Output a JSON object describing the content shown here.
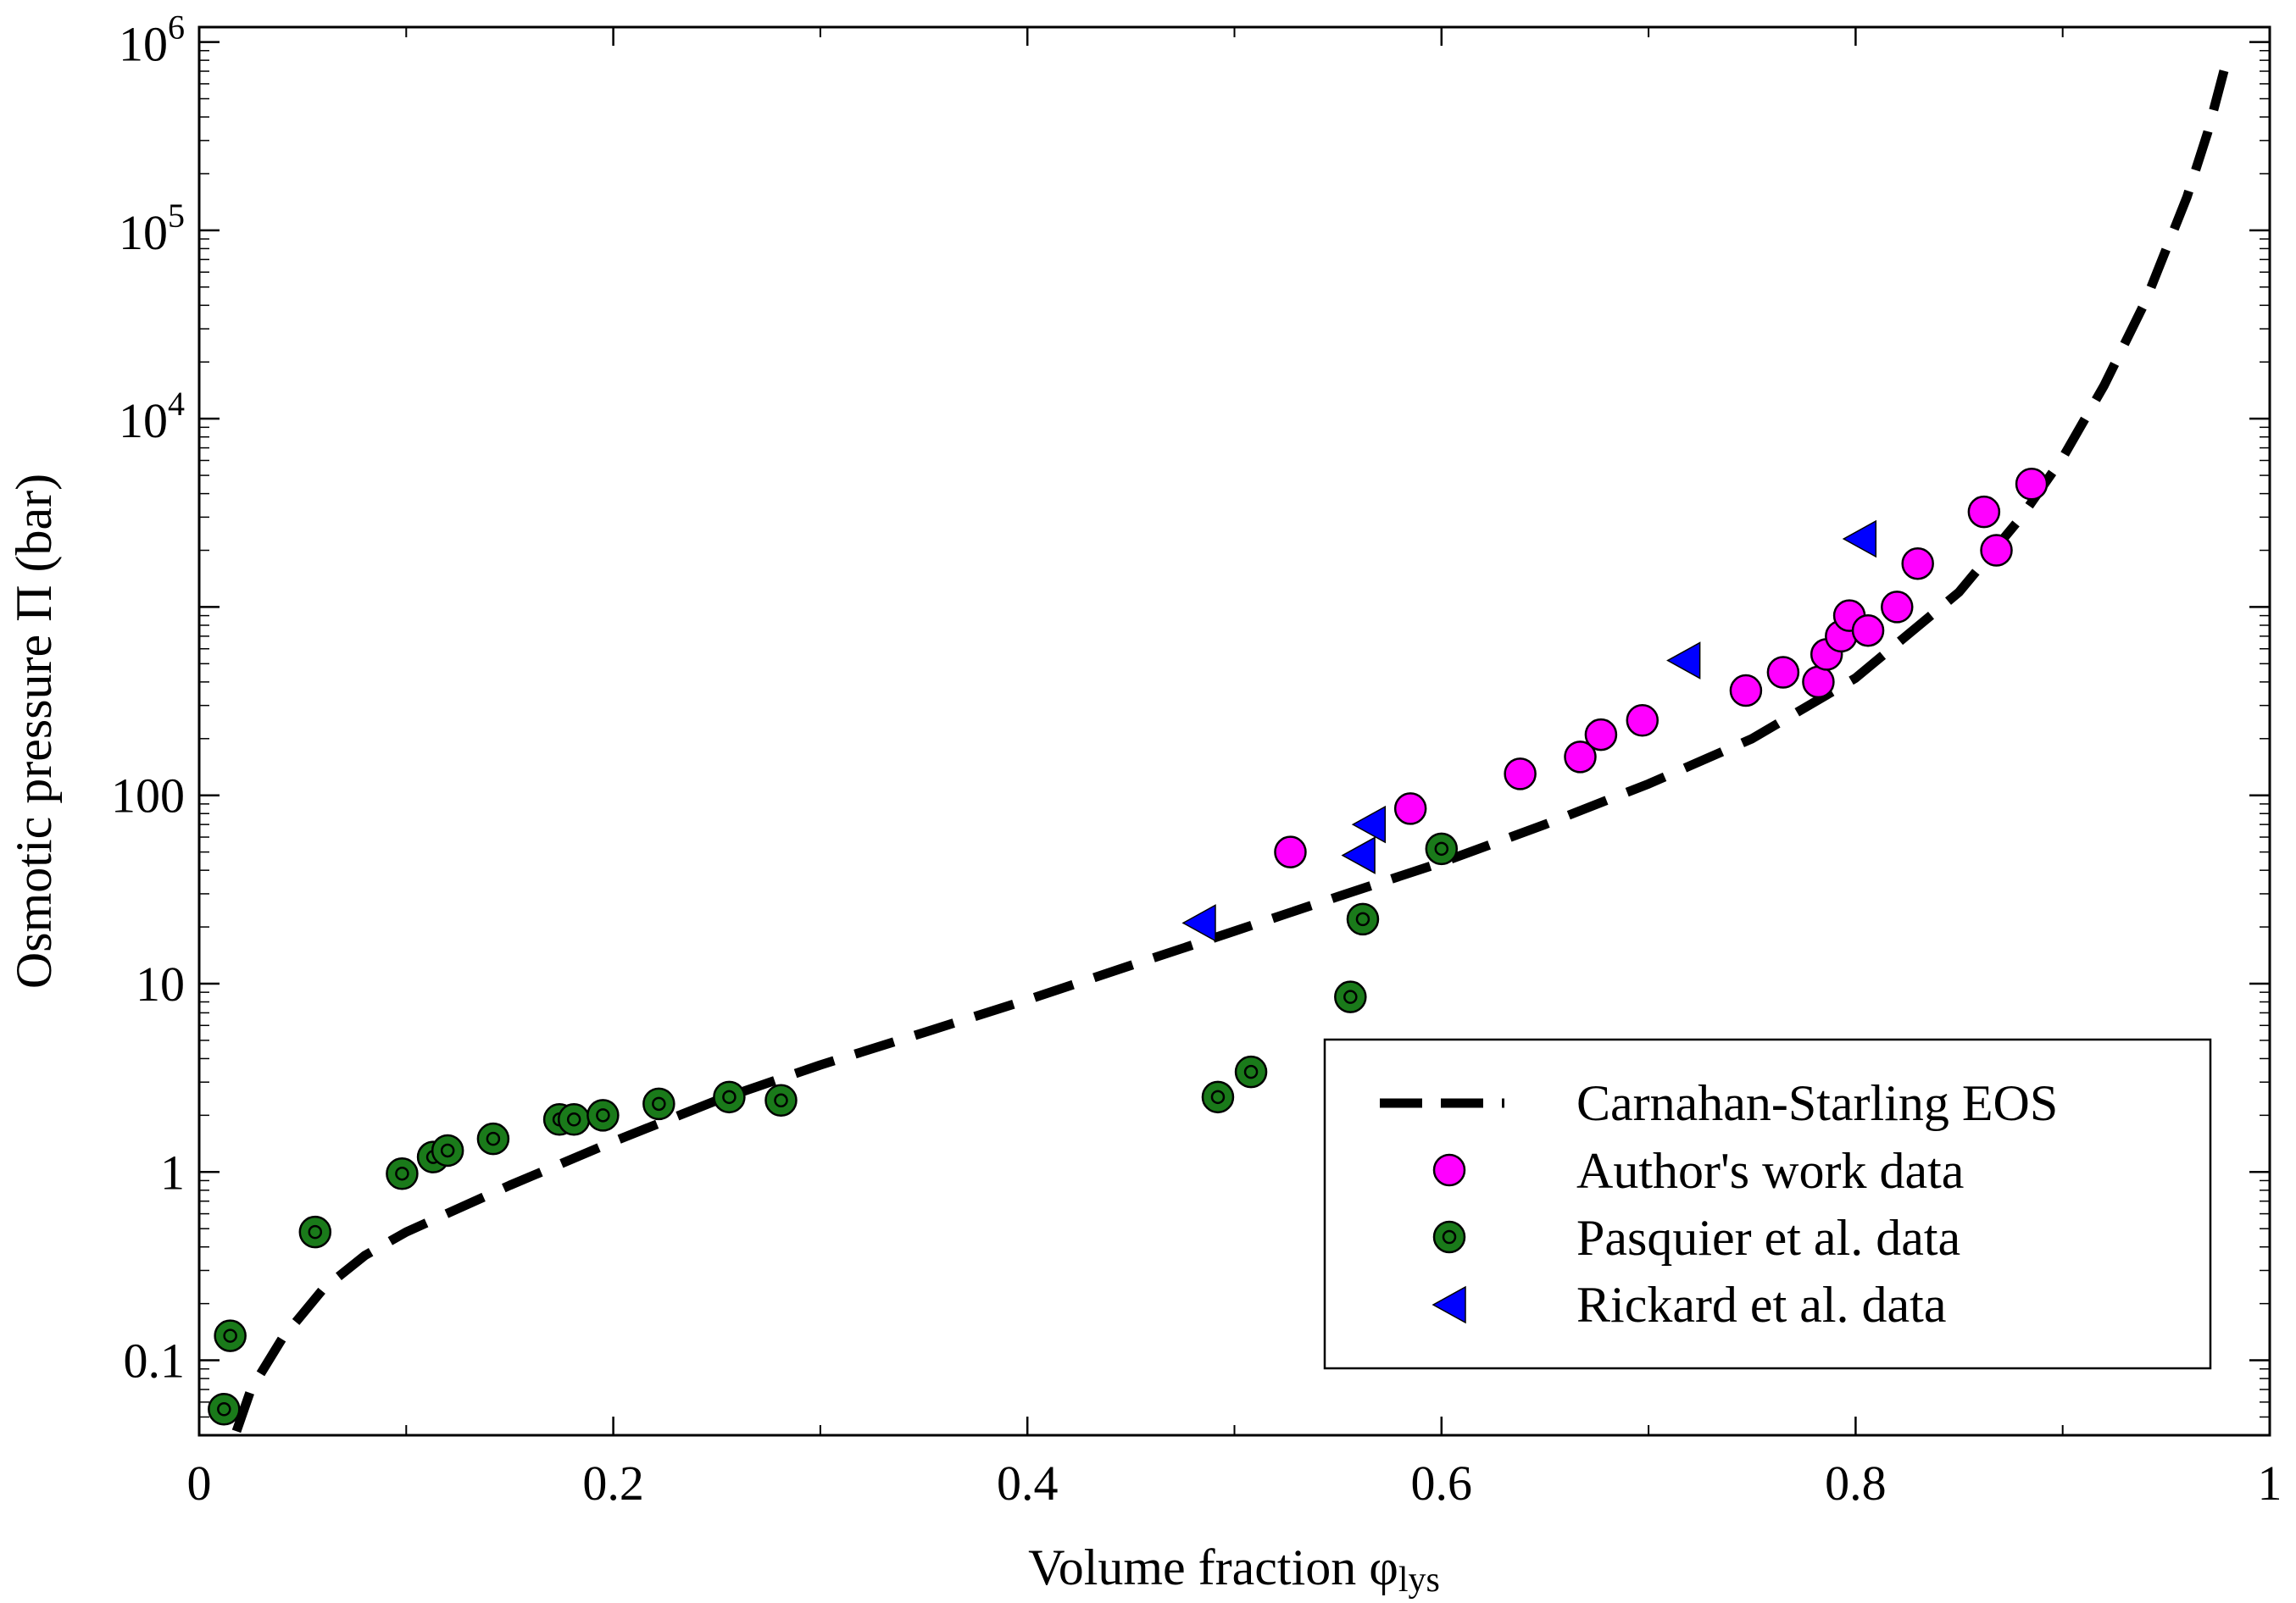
{
  "chart_data": {
    "type": "scatter",
    "title": "",
    "xlabel": "Volume fraction φ",
    "xlabel_subscript": "lys",
    "ylabel": "Osmotic pressure Π (bar)",
    "xscale": "linear",
    "yscale": "log",
    "xlim": [
      0,
      1
    ],
    "ylim": [
      0.04,
      1200000
    ],
    "x_ticks": [
      {
        "value": 0,
        "label": "0"
      },
      {
        "value": 0.2,
        "label": "0.2"
      },
      {
        "value": 0.4,
        "label": "0.4"
      },
      {
        "value": 0.6,
        "label": "0.6"
      },
      {
        "value": 0.8,
        "label": "0.8"
      },
      {
        "value": 1,
        "label": "1"
      }
    ],
    "y_ticks": [
      {
        "value": 0.1,
        "label": "0.1"
      },
      {
        "value": 1,
        "label": "1"
      },
      {
        "value": 10,
        "label": "10"
      },
      {
        "value": 100,
        "label": "100"
      },
      {
        "value": 1000,
        "label": ""
      },
      {
        "value": 10000,
        "label_base": "10",
        "label_exp": "4"
      },
      {
        "value": 100000,
        "label_base": "10",
        "label_exp": "5"
      },
      {
        "value": 1000000,
        "label_base": "10",
        "label_exp": "6"
      }
    ],
    "legend_position": "bottom-right",
    "series": [
      {
        "name": "Carnahan-Starling EOS",
        "kind": "line",
        "color": "#000000",
        "x": [
          0.018,
          0.025,
          0.04,
          0.06,
          0.08,
          0.1,
          0.15,
          0.2,
          0.25,
          0.3,
          0.35,
          0.4,
          0.45,
          0.5,
          0.55,
          0.6,
          0.65,
          0.7,
          0.75,
          0.8,
          0.85,
          0.88,
          0.9,
          0.92,
          0.94,
          0.96,
          0.97,
          0.98
        ],
        "y": [
          0.042,
          0.07,
          0.13,
          0.24,
          0.36,
          0.48,
          0.85,
          1.45,
          2.4,
          3.7,
          5.5,
          8.2,
          12.5,
          19,
          29,
          44,
          70,
          115,
          200,
          420,
          1200,
          3000,
          6200,
          15000,
          42000,
          150000,
          330000,
          860000
        ]
      },
      {
        "name": "Author's work data",
        "kind": "circle",
        "color": "#ff00ff",
        "x": [
          0.527,
          0.585,
          0.638,
          0.667,
          0.677,
          0.697,
          0.747,
          0.765,
          0.782,
          0.786,
          0.793,
          0.797,
          0.806,
          0.82,
          0.83,
          0.862,
          0.868,
          0.885
        ],
        "y": [
          50,
          85,
          130,
          160,
          210,
          250,
          360,
          450,
          400,
          560,
          700,
          900,
          750,
          1000,
          1700,
          3200,
          2000,
          4500
        ]
      },
      {
        "name": "Pasquier et al. data",
        "kind": "circle-dot",
        "color": "#1a7a1a",
        "x": [
          0.012,
          0.015,
          0.056,
          0.098,
          0.113,
          0.12,
          0.142,
          0.174,
          0.181,
          0.195,
          0.222,
          0.256,
          0.281,
          0.492,
          0.508,
          0.556,
          0.562,
          0.6
        ],
        "y": [
          0.055,
          0.135,
          0.48,
          0.98,
          1.2,
          1.3,
          1.5,
          1.9,
          1.9,
          2.0,
          2.3,
          2.5,
          2.4,
          2.5,
          3.4,
          8.5,
          22,
          52
        ]
      },
      {
        "name": "Rickard et al. data",
        "kind": "triangle-left",
        "color": "#0000ff",
        "x": [
          0.483,
          0.56,
          0.565,
          0.717,
          0.802
        ],
        "y": [
          21,
          48,
          70,
          520,
          2300
        ]
      }
    ]
  }
}
